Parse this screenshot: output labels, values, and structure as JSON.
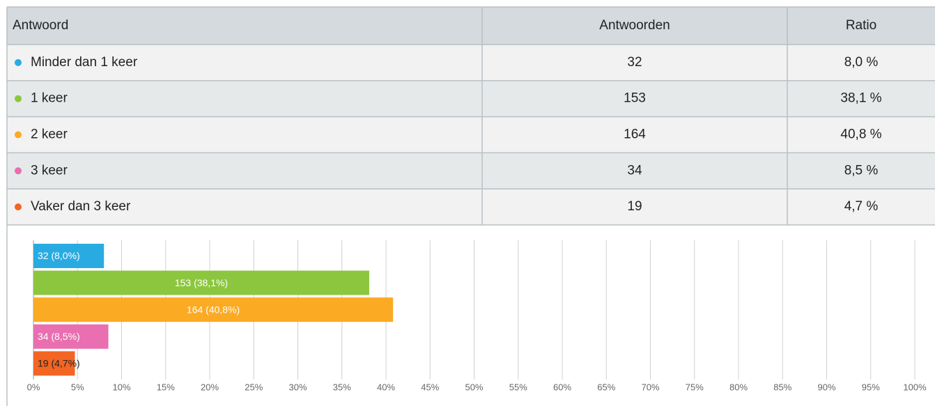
{
  "table": {
    "header": [
      "Antwoord",
      "Antwoorden",
      "Ratio"
    ],
    "rows": [
      [
        "Minder dan 1 keer",
        "32",
        "8,0 %"
      ],
      [
        "1 keer",
        "153",
        "38,1 %"
      ],
      [
        "2 keer",
        "164",
        "40,8 %"
      ],
      [
        "3 keer",
        "34",
        "8,5 %"
      ],
      [
        "Vaker dan 3 keer",
        "19",
        "4,7 %"
      ]
    ]
  },
  "chart_data": {
    "type": "hbar",
    "values": [
      8.0,
      38.1,
      40.8,
      8.5,
      4.7
    ],
    "value_labels": [
      "32 (8,0%)",
      "153 (38,1%)",
      "164 (40,8%)",
      "34 (8,5%)",
      "19 (4,7%)"
    ],
    "colors": [
      "#29abe2",
      "#8cc63f",
      "#fbaa23",
      "#e96fb0",
      "#f26522"
    ],
    "xlim": [
      0,
      100
    ],
    "xticks": [
      {
        "value": 0,
        "label": "0%"
      },
      {
        "value": 5,
        "label": "5%"
      },
      {
        "value": 10,
        "label": "10%"
      },
      {
        "value": 15,
        "label": "15%"
      },
      {
        "value": 20,
        "label": "20%"
      },
      {
        "value": 25,
        "label": "25%"
      },
      {
        "value": 30,
        "label": "30%"
      },
      {
        "value": 35,
        "label": "35%"
      },
      {
        "value": 40,
        "label": "40%"
      },
      {
        "value": 45,
        "label": "45%"
      },
      {
        "value": 50,
        "label": "50%"
      },
      {
        "value": 55,
        "label": "55%"
      },
      {
        "value": 60,
        "label": "60%"
      },
      {
        "value": 65,
        "label": "65%"
      },
      {
        "value": 70,
        "label": "70%"
      },
      {
        "value": 75,
        "label": "75%"
      },
      {
        "value": 80,
        "label": "80%"
      },
      {
        "value": 85,
        "label": "85%"
      },
      {
        "value": 90,
        "label": "90%"
      },
      {
        "value": 95,
        "label": "95%"
      },
      {
        "value": 100,
        "label": "100%"
      }
    ],
    "grid": true
  }
}
